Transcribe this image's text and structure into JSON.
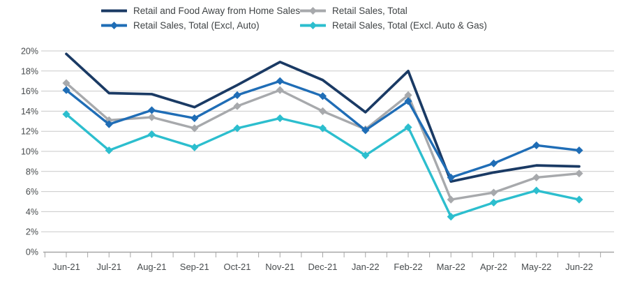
{
  "chart_data": {
    "type": "line",
    "title": "",
    "x_labels": [
      "Jun-21",
      "Jul-21",
      "Aug-21",
      "Sep-21",
      "Oct-21",
      "Nov-21",
      "Dec-21",
      "Jan-22",
      "Feb-22",
      "Mar-22",
      "Apr-22",
      "May-22",
      "Jun-22"
    ],
    "ylim": [
      0,
      20
    ],
    "ytick_step": 2,
    "y_tick_labels": [
      "0%",
      "2%",
      "4%",
      "6%",
      "8%",
      "10%",
      "12%",
      "14%",
      "16%",
      "18%",
      "20%"
    ],
    "grid": "horizontal",
    "legend_position": "top",
    "series": [
      {
        "name": "Retail and Food Away from Home Sales",
        "color": "#1a3a64",
        "marker": "none",
        "values": [
          19.7,
          15.8,
          15.7,
          14.4,
          16.6,
          18.9,
          17.1,
          13.9,
          18.0,
          7.0,
          7.9,
          8.6,
          8.5
        ]
      },
      {
        "name": "Retail Sales, Total",
        "color": "#a7a9ac",
        "marker": "diamond",
        "values": [
          16.8,
          13.1,
          13.4,
          12.3,
          14.5,
          16.1,
          14.0,
          12.2,
          15.6,
          5.2,
          5.9,
          7.4,
          7.8
        ]
      },
      {
        "name": "Retail Sales, Total (Excl, Auto)",
        "color": "#1f6db6",
        "marker": "diamond",
        "values": [
          16.1,
          12.7,
          14.1,
          13.3,
          15.6,
          17.0,
          15.5,
          12.1,
          15.0,
          7.4,
          8.8,
          10.6,
          10.1
        ]
      },
      {
        "name": "Retail Sales, Total (Excl. Auto & Gas)",
        "color": "#2cbece",
        "marker": "diamond",
        "values": [
          13.7,
          10.1,
          11.7,
          10.4,
          12.3,
          13.3,
          12.3,
          9.6,
          12.4,
          3.5,
          4.9,
          6.1,
          5.2
        ]
      }
    ],
    "colors": {
      "gridline": "#c9c9c9",
      "axis": "#a6a6a6",
      "tick": "#a6a6a6",
      "label_text": "#474b4d"
    }
  }
}
